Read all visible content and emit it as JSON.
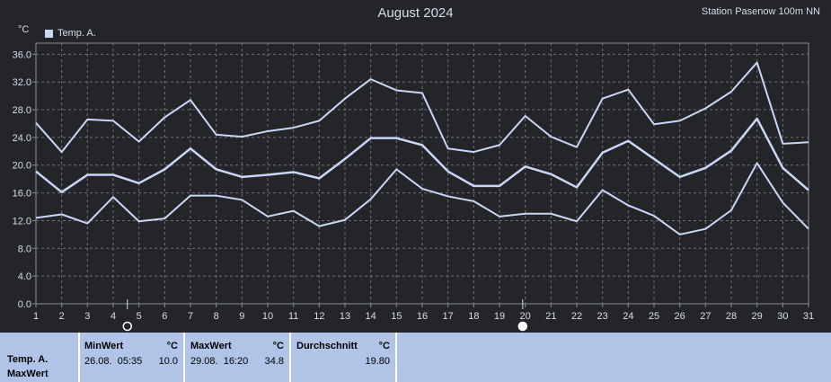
{
  "header": {
    "title": "August 2024",
    "station": "Station Pasenow 100m NN",
    "unit": "°C"
  },
  "legend": {
    "label": "Temp. A.",
    "color": "#c9d6f6"
  },
  "chart_data": {
    "type": "line",
    "title": "August 2024",
    "ylabel": "°C",
    "xlabel": "",
    "x": [
      1,
      2,
      3,
      4,
      5,
      6,
      7,
      8,
      9,
      10,
      11,
      12,
      13,
      14,
      15,
      16,
      17,
      18,
      19,
      20,
      21,
      22,
      23,
      24,
      25,
      26,
      27,
      28,
      29,
      30,
      31
    ],
    "ylim": [
      0,
      37.6
    ],
    "yticks": [
      "0.0",
      "4.0",
      "8.0",
      "12.0",
      "16.0",
      "20.0",
      "24.0",
      "28.0",
      "32.0",
      "36.0"
    ],
    "xticks": [
      "1",
      "2",
      "3",
      "4",
      "5",
      "6",
      "7",
      "8",
      "9",
      "10",
      "11",
      "12",
      "13",
      "14",
      "15",
      "16",
      "17",
      "18",
      "19",
      "20",
      "21",
      "22",
      "23",
      "24",
      "25",
      "26",
      "27",
      "28",
      "29",
      "30",
      "31"
    ],
    "grid": true,
    "legend_position": "top-left",
    "series": [
      {
        "name": "Temp. A.",
        "role": "max",
        "color": "#c9d6f6",
        "values": [
          26.1,
          21.9,
          26.6,
          26.4,
          23.4,
          26.9,
          29.4,
          24.4,
          24.1,
          24.9,
          25.4,
          26.4,
          29.6,
          32.4,
          30.8,
          30.4,
          22.4,
          21.9,
          22.9,
          27.1,
          24.1,
          22.6,
          29.6,
          30.9,
          25.9,
          26.4,
          28.2,
          30.6,
          34.8,
          23.1,
          23.3
        ]
      },
      {
        "name": "Temp. A.",
        "role": "avg",
        "color": "#c9d6f6",
        "values": [
          19.1,
          16.1,
          18.6,
          18.6,
          17.4,
          19.4,
          22.4,
          19.4,
          18.3,
          18.6,
          19.0,
          18.1,
          20.9,
          23.9,
          23.9,
          22.9,
          19.1,
          17.0,
          17.0,
          19.8,
          18.7,
          16.8,
          21.8,
          23.5,
          20.9,
          18.3,
          19.6,
          22.1,
          26.7,
          19.6,
          16.4
        ]
      },
      {
        "name": "Temp. A.",
        "role": "min",
        "color": "#c9d6f6",
        "values": [
          12.4,
          12.9,
          11.6,
          15.4,
          11.9,
          12.3,
          15.6,
          15.6,
          15.0,
          12.6,
          13.4,
          11.2,
          12.1,
          15.1,
          19.4,
          16.6,
          15.5,
          14.8,
          12.6,
          13.0,
          13.0,
          11.9,
          16.4,
          14.2,
          12.7,
          10.0,
          10.8,
          13.5,
          20.3,
          14.6,
          10.8
        ]
      }
    ],
    "markers": [
      {
        "day": 4.55,
        "symbol": "new-moon"
      },
      {
        "day": 19.9,
        "symbol": "full-moon"
      }
    ]
  },
  "summary": {
    "row_label": "Temp. A.",
    "row_sublabel": "MaxWert",
    "min": {
      "header": "MinWert",
      "unit": "°C",
      "date": "26.08.  05:35",
      "value": "10.0"
    },
    "max": {
      "header": "MaxWert",
      "unit": "°C",
      "date": "29.08.  16:20",
      "value": "34.8"
    },
    "avg": {
      "header": "Durchschnitt",
      "unit": "°C",
      "value": "19.80"
    }
  }
}
